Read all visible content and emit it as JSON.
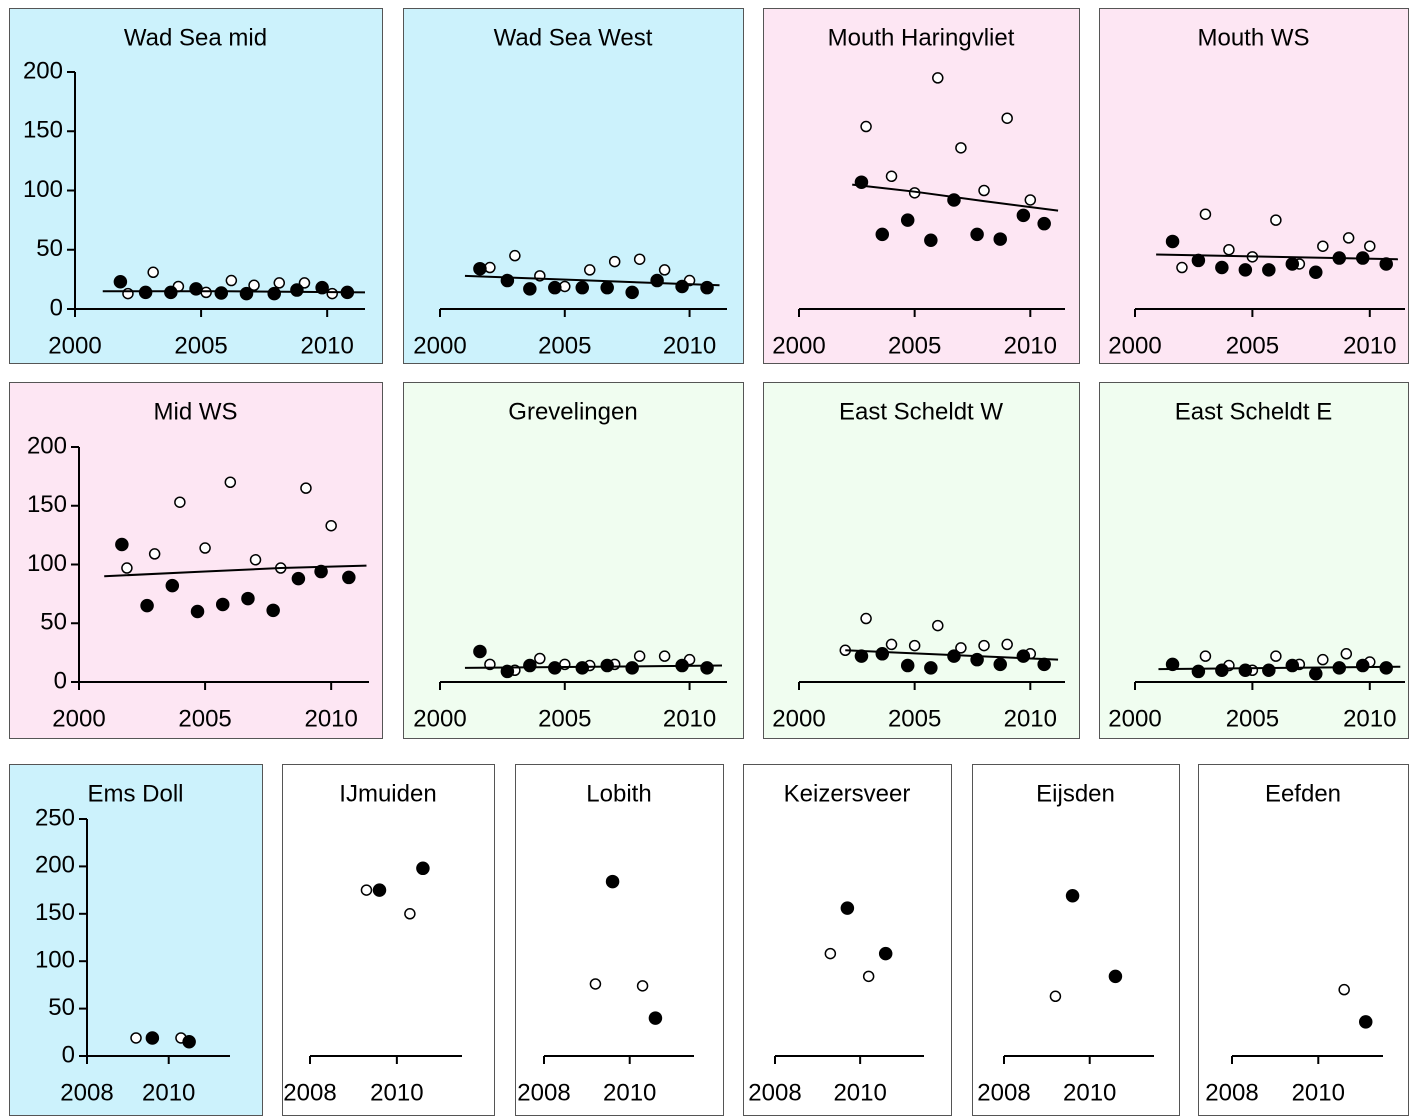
{
  "chart_data": [
    {
      "type": "scatter",
      "title": "Wad Sea mid",
      "background": "#ccf2fc",
      "xlim": [
        2000,
        2011.5
      ],
      "xticks": [
        2000,
        2005,
        2010
      ],
      "ylim": [
        0,
        200
      ],
      "yticks": [
        0,
        50,
        100,
        150,
        200
      ],
      "series": [
        {
          "kind": "open",
          "color": "#000000",
          "x": [
            2002.1,
            2003.1,
            2004.1,
            2005.2,
            2006.2,
            2007.1,
            2008.1,
            2009.1,
            2010.2
          ],
          "values": [
            13,
            31,
            19,
            14,
            24,
            20,
            22,
            22,
            13
          ]
        },
        {
          "kind": "filled",
          "color": "#000000",
          "x": [
            2001.8,
            2002.8,
            2003.8,
            2004.8,
            2005.8,
            2006.8,
            2007.9,
            2008.8,
            2009.8,
            2010.8
          ],
          "values": [
            23,
            14,
            14,
            17,
            13.5,
            13,
            13,
            16,
            18,
            14
          ]
        },
        {
          "kind": "trend",
          "color": "#000000",
          "x": [
            2001.1,
            2006,
            2011.5
          ],
          "values": [
            15,
            15,
            14
          ]
        }
      ]
    },
    {
      "type": "scatter",
      "title": "Wad Sea West",
      "background": "#ccf2fc",
      "xlim": [
        2000,
        2011.5
      ],
      "xticks": [
        2000,
        2005,
        2010
      ],
      "ylim": [
        0,
        200
      ],
      "series": [
        {
          "kind": "open",
          "color": "#000000",
          "x": [
            2002.0,
            2003.0,
            2004.0,
            2005.0,
            2006.0,
            2007.0,
            2008.0,
            2009.0,
            2010.0
          ],
          "values": [
            35,
            45,
            28,
            19,
            33,
            40,
            42,
            33,
            24
          ]
        },
        {
          "kind": "filled",
          "color": "#000000",
          "x": [
            2001.6,
            2002.7,
            2003.6,
            2004.6,
            2005.7,
            2006.7,
            2007.7,
            2008.7,
            2009.7,
            2010.7
          ],
          "values": [
            34,
            24,
            17,
            18,
            18,
            18,
            14,
            24,
            19,
            18
          ]
        },
        {
          "kind": "trend",
          "color": "#000000",
          "x": [
            2001,
            2006,
            2011.2
          ],
          "values": [
            28,
            24,
            20
          ]
        }
      ]
    },
    {
      "type": "scatter",
      "title": "Mouth Haringvliet",
      "background": "#fde6f3",
      "xlim": [
        2000,
        2011.5
      ],
      "xticks": [
        2000,
        2005,
        2010
      ],
      "ylim": [
        0,
        200
      ],
      "series": [
        {
          "kind": "open",
          "color": "#000000",
          "x": [
            2002.9,
            2004.0,
            2005.0,
            2006.0,
            2007.0,
            2008.0,
            2009.0,
            2010.0
          ],
          "values": [
            154,
            112,
            98,
            195,
            136,
            100,
            161,
            92
          ]
        },
        {
          "kind": "filled",
          "color": "#000000",
          "x": [
            2002.7,
            2003.6,
            2004.7,
            2005.7,
            2006.7,
            2007.7,
            2008.7,
            2009.7,
            2010.6
          ],
          "values": [
            107,
            63,
            75,
            58,
            92,
            63,
            59,
            79,
            72
          ]
        },
        {
          "kind": "trend",
          "color": "#000000",
          "x": [
            2002.3,
            2005,
            2008,
            2011.2
          ],
          "values": [
            105,
            99,
            91,
            83
          ]
        }
      ]
    },
    {
      "type": "scatter",
      "title": "Mouth WS",
      "background": "#fde6f3",
      "xlim": [
        2000,
        2011.5
      ],
      "xticks": [
        2000,
        2005,
        2010
      ],
      "ylim": [
        0,
        200
      ],
      "series": [
        {
          "kind": "open",
          "color": "#000000",
          "x": [
            2002.0,
            2003.0,
            2004.0,
            2005.0,
            2006.0,
            2007.0,
            2008.0,
            2009.1,
            2010.0
          ],
          "values": [
            35,
            80,
            50,
            44,
            75,
            38,
            53,
            60,
            53
          ]
        },
        {
          "kind": "filled",
          "color": "#000000",
          "x": [
            2001.6,
            2002.7,
            2003.7,
            2004.7,
            2005.7,
            2006.7,
            2007.7,
            2008.7,
            2009.7,
            2010.7
          ],
          "values": [
            57,
            41,
            35,
            33,
            33,
            38,
            31,
            43,
            43,
            38
          ]
        },
        {
          "kind": "trend",
          "color": "#000000",
          "x": [
            2000.9,
            2011.2
          ],
          "values": [
            46,
            42
          ]
        }
      ]
    },
    {
      "type": "scatter",
      "title": "Mid WS",
      "background": "#fde6f3",
      "xlim": [
        2000,
        2011.5
      ],
      "xticks": [
        2000,
        2005,
        2010
      ],
      "ylim": [
        0,
        200
      ],
      "yticks": [
        0,
        50,
        100,
        150,
        200
      ],
      "series": [
        {
          "kind": "open",
          "color": "#000000",
          "x": [
            2001.9,
            2003.0,
            2004.0,
            2005.0,
            2006.0,
            2007.0,
            2008.0,
            2009.0,
            2010.0
          ],
          "values": [
            97,
            109,
            153,
            114,
            170,
            104,
            97,
            165,
            133
          ]
        },
        {
          "kind": "filled",
          "color": "#000000",
          "x": [
            2001.7,
            2002.7,
            2003.7,
            2004.7,
            2005.7,
            2006.7,
            2007.7,
            2008.7,
            2009.6,
            2010.7
          ],
          "values": [
            117,
            65,
            82,
            60,
            66,
            71,
            61,
            88,
            94,
            89
          ]
        },
        {
          "kind": "trend",
          "color": "#000000",
          "x": [
            2001,
            2005,
            2008,
            2011.4
          ],
          "values": [
            90,
            94,
            97,
            99
          ]
        }
      ]
    },
    {
      "type": "scatter",
      "title": "Grevelingen",
      "background": "#f0fdf0",
      "xlim": [
        2000,
        2011.5
      ],
      "xticks": [
        2000,
        2005,
        2010
      ],
      "ylim": [
        0,
        200
      ],
      "series": [
        {
          "kind": "open",
          "color": "#000000",
          "x": [
            2002.0,
            2003.0,
            2004.0,
            2005.0,
            2006.0,
            2007.0,
            2008.0,
            2009.0,
            2010.0
          ],
          "values": [
            15,
            10,
            20,
            15,
            14,
            15,
            22,
            22,
            19
          ]
        },
        {
          "kind": "filled",
          "color": "#000000",
          "x": [
            2001.6,
            2002.7,
            2003.6,
            2004.6,
            2005.7,
            2006.7,
            2007.7,
            2009.7,
            2010.7
          ],
          "values": [
            26,
            9,
            14,
            12,
            12,
            14,
            12,
            14,
            12
          ]
        },
        {
          "kind": "trend",
          "color": "#000000",
          "x": [
            2001,
            2011.3
          ],
          "values": [
            12,
            14
          ]
        }
      ]
    },
    {
      "type": "scatter",
      "title": "East Scheldt W",
      "background": "#f0fdf0",
      "xlim": [
        2000,
        2011.5
      ],
      "xticks": [
        2000,
        2005,
        2010
      ],
      "ylim": [
        0,
        200
      ],
      "series": [
        {
          "kind": "open",
          "color": "#000000",
          "x": [
            2002.0,
            2002.9,
            2004.0,
            2005.0,
            2006.0,
            2007.0,
            2008.0,
            2009.0,
            2010.0
          ],
          "values": [
            27,
            54,
            32,
            31,
            48,
            29,
            31,
            32,
            24
          ]
        },
        {
          "kind": "filled",
          "color": "#000000",
          "x": [
            2002.7,
            2003.6,
            2004.7,
            2005.7,
            2006.7,
            2007.7,
            2008.7,
            2009.7,
            2010.6
          ],
          "values": [
            22,
            24,
            14,
            12,
            22,
            19,
            15,
            22,
            15
          ]
        },
        {
          "kind": "trend",
          "color": "#000000",
          "x": [
            2002,
            2011.2
          ],
          "values": [
            27,
            19
          ]
        }
      ]
    },
    {
      "type": "scatter",
      "title": "East Scheldt E",
      "background": "#f0fdf0",
      "xlim": [
        2000,
        2011.5
      ],
      "xticks": [
        2000,
        2005,
        2010
      ],
      "ylim": [
        0,
        200
      ],
      "series": [
        {
          "kind": "open",
          "color": "#000000",
          "x": [
            2003.0,
            2004.0,
            2005.0,
            2006.0,
            2007.0,
            2008.0,
            2009.0,
            2010.0
          ],
          "values": [
            22,
            14,
            10,
            22,
            15,
            19,
            24,
            17
          ]
        },
        {
          "kind": "filled",
          "color": "#000000",
          "x": [
            2001.6,
            2002.7,
            2003.7,
            2004.7,
            2005.7,
            2006.7,
            2007.7,
            2008.7,
            2009.7,
            2010.7
          ],
          "values": [
            15,
            9,
            10,
            10,
            10,
            14,
            7,
            12,
            14,
            12
          ]
        },
        {
          "kind": "trend",
          "color": "#000000",
          "x": [
            2001,
            2011.3
          ],
          "values": [
            11,
            13
          ]
        }
      ]
    },
    {
      "type": "scatter",
      "title": "Ems Doll",
      "background": "#ccf2fc",
      "xlim": [
        2008,
        2011.5
      ],
      "xticks": [
        2008,
        2010
      ],
      "ylim": [
        0,
        250
      ],
      "yticks": [
        0,
        50,
        100,
        150,
        200,
        250
      ],
      "series": [
        {
          "kind": "open",
          "color": "#000000",
          "x": [
            2009.2,
            2010.3
          ],
          "values": [
            19,
            19
          ]
        },
        {
          "kind": "filled",
          "color": "#000000",
          "x": [
            2009.6,
            2010.5
          ],
          "values": [
            19,
            15
          ]
        }
      ]
    },
    {
      "type": "scatter",
      "title": "IJmuiden",
      "background": "#ffffff",
      "xlim": [
        2008,
        2011.5
      ],
      "xticks": [
        2008,
        2010
      ],
      "ylim": [
        0,
        250
      ],
      "series": [
        {
          "kind": "open",
          "color": "#000000",
          "x": [
            2009.3,
            2010.3
          ],
          "values": [
            175,
            150
          ]
        },
        {
          "kind": "filled",
          "color": "#000000",
          "x": [
            2009.6,
            2010.6
          ],
          "values": [
            175,
            198
          ]
        }
      ]
    },
    {
      "type": "scatter",
      "title": "Lobith",
      "background": "#ffffff",
      "xlim": [
        2008,
        2011.5
      ],
      "xticks": [
        2008,
        2010
      ],
      "ylim": [
        0,
        250
      ],
      "series": [
        {
          "kind": "open",
          "color": "#000000",
          "x": [
            2009.2,
            2010.3
          ],
          "values": [
            76,
            74
          ]
        },
        {
          "kind": "filled",
          "color": "#000000",
          "x": [
            2009.6,
            2010.6
          ],
          "values": [
            184,
            40
          ]
        }
      ]
    },
    {
      "type": "scatter",
      "title": "Keizersveer",
      "background": "#ffffff",
      "xlim": [
        2008,
        2011.5
      ],
      "xticks": [
        2008,
        2010
      ],
      "ylim": [
        0,
        250
      ],
      "series": [
        {
          "kind": "open",
          "color": "#000000",
          "x": [
            2009.3,
            2010.2
          ],
          "values": [
            108,
            84
          ]
        },
        {
          "kind": "filled",
          "color": "#000000",
          "x": [
            2009.7,
            2010.6
          ],
          "values": [
            156,
            108
          ]
        }
      ]
    },
    {
      "type": "scatter",
      "title": "Eijsden",
      "background": "#ffffff",
      "xlim": [
        2008,
        2011.5
      ],
      "xticks": [
        2008,
        2010
      ],
      "ylim": [
        0,
        250
      ],
      "series": [
        {
          "kind": "open",
          "color": "#000000",
          "x": [
            2009.2
          ],
          "values": [
            63
          ]
        },
        {
          "kind": "filled",
          "color": "#000000",
          "x": [
            2009.6,
            2010.6
          ],
          "values": [
            169,
            84
          ]
        }
      ]
    },
    {
      "type": "scatter",
      "title": "Eefden",
      "background": "#ffffff",
      "xlim": [
        2008,
        2011.5
      ],
      "xticks": [
        2008,
        2010
      ],
      "ylim": [
        0,
        250
      ],
      "series": [
        {
          "kind": "open",
          "color": "#000000",
          "x": [
            2010.6
          ],
          "values": [
            70
          ]
        },
        {
          "kind": "filled",
          "color": "#000000",
          "x": [
            2011.1
          ],
          "values": [
            36
          ]
        }
      ]
    }
  ]
}
